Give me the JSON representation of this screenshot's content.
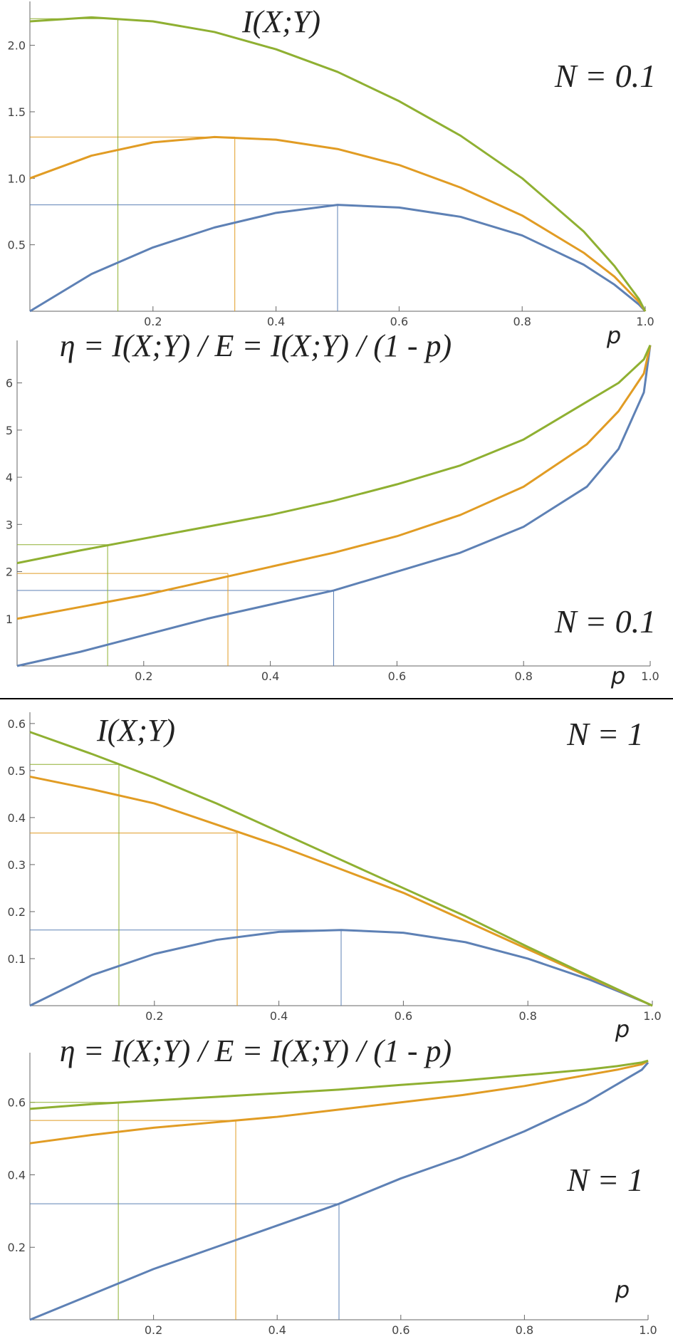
{
  "chart_data": [
    {
      "type": "line",
      "title": "I(X;Y)",
      "annotation": "N = 0.1",
      "xlabel": "p",
      "x": [
        0,
        0.1,
        0.2,
        0.3,
        0.4,
        0.5,
        0.6,
        0.7,
        0.8,
        0.9,
        0.95,
        0.99,
        1
      ],
      "xlim": [
        0,
        1
      ],
      "ylim": [
        0,
        2.33
      ],
      "xticks": [
        0.2,
        0.4,
        0.6,
        0.8,
        {
          "value": 1,
          "label": "1.0"
        }
      ],
      "yticks": [
        0.5,
        {
          "value": 1,
          "label": "1.0"
        },
        1.5,
        {
          "value": 2,
          "label": "2.0"
        }
      ],
      "series": [
        {
          "color": "#5e81b5",
          "values": [
            0,
            0.28,
            0.48,
            0.63,
            0.74,
            0.8,
            0.78,
            0.71,
            0.57,
            0.35,
            0.2,
            0.05,
            0
          ],
          "guide": [
            0.5,
            0.8
          ]
        },
        {
          "color": "#e19c24",
          "values": [
            1.0,
            1.17,
            1.27,
            1.31,
            1.29,
            1.22,
            1.1,
            0.93,
            0.72,
            0.44,
            0.26,
            0.07,
            0
          ],
          "guide": [
            0.333,
            1.31
          ]
        },
        {
          "color": "#8fb032",
          "values": [
            2.18,
            2.21,
            2.18,
            2.1,
            1.97,
            1.8,
            1.58,
            1.32,
            1.0,
            0.6,
            0.34,
            0.09,
            0
          ],
          "guide": [
            0.143,
            2.2
          ]
        }
      ]
    },
    {
      "type": "line",
      "title": "η = I(X;Y) / E = I(X;Y) / (1 - p)",
      "annotation": "N = 0.1",
      "xlabel": "p",
      "x": [
        0,
        0.1,
        0.2,
        0.3,
        0.4,
        0.5,
        0.6,
        0.7,
        0.8,
        0.9,
        0.95,
        0.99,
        1
      ],
      "xlim": [
        0,
        1
      ],
      "ylim": [
        0,
        6.9
      ],
      "xticks": [
        0.2,
        0.4,
        0.6,
        0.8,
        {
          "value": 1,
          "label": "1.0"
        }
      ],
      "yticks": [
        1,
        2,
        3,
        4,
        5,
        6
      ],
      "series": [
        {
          "color": "#5e81b5",
          "values": [
            0,
            0.3,
            0.65,
            1.0,
            1.3,
            1.6,
            2.0,
            2.4,
            2.95,
            3.8,
            4.6,
            5.8,
            6.8
          ],
          "guide": [
            0.5,
            1.6
          ]
        },
        {
          "color": "#e19c24",
          "values": [
            1.0,
            1.25,
            1.5,
            1.8,
            2.1,
            2.4,
            2.75,
            3.2,
            3.8,
            4.7,
            5.4,
            6.2,
            6.8
          ],
          "guide": [
            0.333,
            1.96
          ]
        },
        {
          "color": "#8fb032",
          "values": [
            2.18,
            2.45,
            2.7,
            2.95,
            3.2,
            3.5,
            3.85,
            4.25,
            4.8,
            5.6,
            6.0,
            6.5,
            6.8
          ],
          "guide": [
            0.143,
            2.57
          ]
        }
      ]
    },
    {
      "type": "line",
      "title": "I(X;Y)",
      "annotation": "N = 1",
      "xlabel": "p",
      "x": [
        0,
        0.1,
        0.2,
        0.3,
        0.4,
        0.5,
        0.6,
        0.7,
        0.8,
        0.9,
        0.95,
        0.99,
        1
      ],
      "xlim": [
        0,
        1
      ],
      "ylim": [
        0,
        0.624
      ],
      "xticks": [
        0.2,
        0.4,
        0.6,
        0.8,
        {
          "value": 1,
          "label": "1.0"
        }
      ],
      "yticks": [
        0.1,
        0.2,
        0.3,
        0.4,
        0.5,
        0.6
      ],
      "series": [
        {
          "color": "#5e81b5",
          "values": [
            0,
            0.065,
            0.11,
            0.14,
            0.157,
            0.161,
            0.155,
            0.135,
            0.1,
            0.055,
            0.028,
            0.006,
            0
          ],
          "guide": [
            0.5,
            0.161
          ]
        },
        {
          "color": "#e19c24",
          "values": [
            0.487,
            0.46,
            0.43,
            0.385,
            0.34,
            0.29,
            0.24,
            0.18,
            0.12,
            0.06,
            0.03,
            0.006,
            0
          ],
          "guide": [
            0.333,
            0.367
          ]
        },
        {
          "color": "#8fb032",
          "values": [
            0.582,
            0.535,
            0.485,
            0.43,
            0.37,
            0.31,
            0.25,
            0.19,
            0.125,
            0.062,
            0.031,
            0.006,
            0
          ],
          "guide": [
            0.143,
            0.513
          ]
        }
      ]
    },
    {
      "type": "line",
      "title": "η = I(X;Y) / E = I(X;Y) / (1 - p)",
      "annotation": "N = 1",
      "xlabel": "p",
      "x": [
        0,
        0.1,
        0.2,
        0.3,
        0.4,
        0.5,
        0.6,
        0.7,
        0.8,
        0.9,
        0.95,
        0.99,
        1
      ],
      "xlim": [
        0,
        1
      ],
      "ylim": [
        0,
        0.737
      ],
      "xticks": [
        0.2,
        0.4,
        0.6,
        0.8,
        {
          "value": 1,
          "label": "1.0"
        }
      ],
      "yticks": [
        0.2,
        0.4,
        0.6
      ],
      "series": [
        {
          "color": "#5e81b5",
          "values": [
            0,
            0.07,
            0.14,
            0.2,
            0.26,
            0.32,
            0.39,
            0.45,
            0.52,
            0.6,
            0.65,
            0.69,
            0.71
          ],
          "guide": [
            0.5,
            0.32
          ]
        },
        {
          "color": "#e19c24",
          "values": [
            0.487,
            0.51,
            0.53,
            0.545,
            0.56,
            0.58,
            0.6,
            0.62,
            0.645,
            0.675,
            0.69,
            0.705,
            0.715
          ],
          "guide": [
            0.333,
            0.55
          ]
        },
        {
          "color": "#8fb032",
          "values": [
            0.582,
            0.595,
            0.605,
            0.615,
            0.625,
            0.635,
            0.648,
            0.66,
            0.675,
            0.69,
            0.7,
            0.71,
            0.715
          ],
          "guide": [
            0.143,
            0.6
          ]
        }
      ]
    }
  ]
}
